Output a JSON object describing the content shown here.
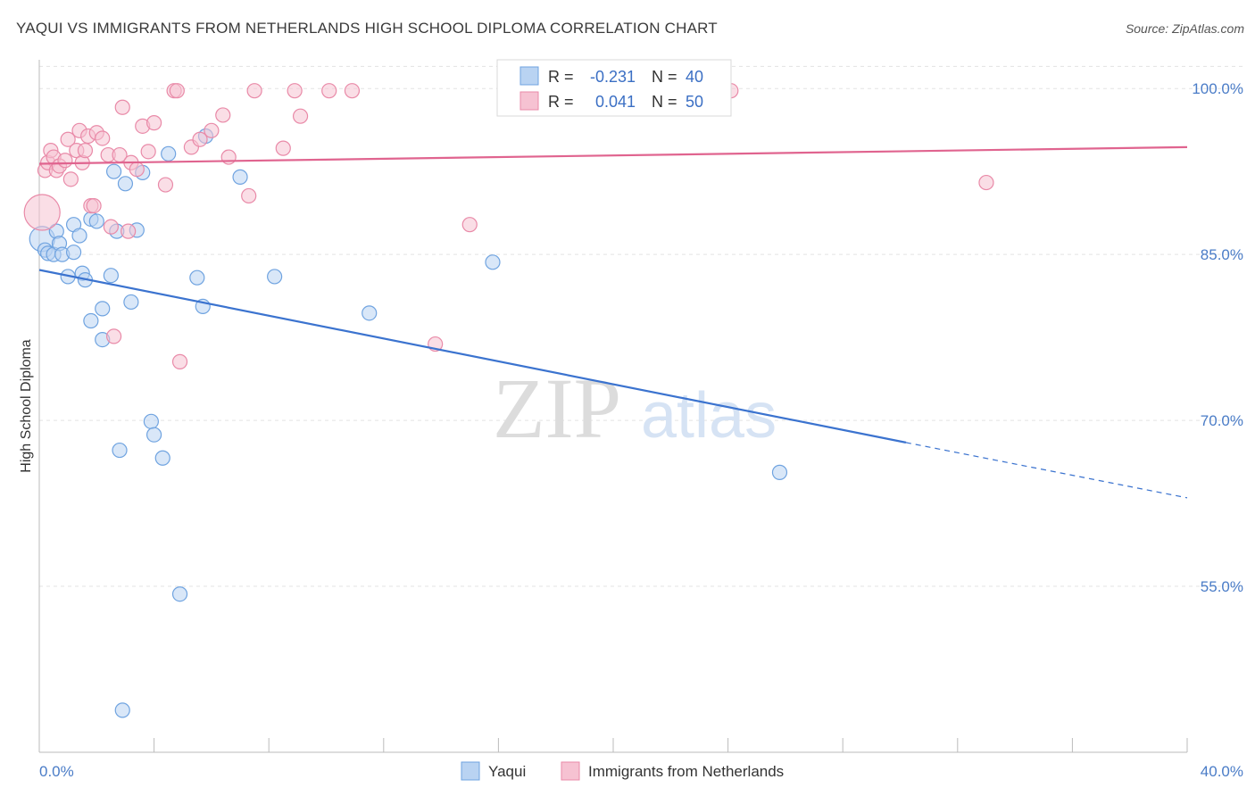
{
  "header": {
    "title": "YAQUI VS IMMIGRANTS FROM NETHERLANDS HIGH SCHOOL DIPLOMA CORRELATION CHART",
    "source": "Source: ZipAtlas.com"
  },
  "watermark": {
    "zip": "ZIP",
    "atlas": "atlas"
  },
  "chart_data": {
    "type": "scatter",
    "title": "YAQUI VS IMMIGRANTS FROM NETHERLANDS HIGH SCHOOL DIPLOMA CORRELATION CHART",
    "xlabel": "",
    "ylabel": "High School Diploma",
    "xlim": [
      0,
      40
    ],
    "ylim": [
      40,
      103
    ],
    "x_tick_labels": [
      "0.0%",
      "40.0%"
    ],
    "y_ticks": [
      55,
      70,
      85,
      100
    ],
    "y_tick_labels": [
      "55.0%",
      "70.0%",
      "85.0%",
      "100.0%"
    ],
    "grid": true,
    "legend_position": "top-center",
    "series": [
      {
        "name": "Yaqui",
        "color": "#6fa3e0",
        "fill": "#b9d3f2",
        "r": "-0.231",
        "n": "40",
        "trend": {
          "x0": 0,
          "y0": 83.6,
          "x1": 30.2,
          "y1": 68.0,
          "dash_x1": 40,
          "dash_y1": 63.0
        },
        "points": [
          [
            0.1,
            86.4
          ],
          [
            0.2,
            85.4
          ],
          [
            0.3,
            85.1
          ],
          [
            0.5,
            85.0
          ],
          [
            0.6,
            87.1
          ],
          [
            0.7,
            86.0
          ],
          [
            0.8,
            85.0
          ],
          [
            1.0,
            83.0
          ],
          [
            1.2,
            85.2
          ],
          [
            1.2,
            87.7
          ],
          [
            1.4,
            86.7
          ],
          [
            1.5,
            83.3
          ],
          [
            1.6,
            82.7
          ],
          [
            1.8,
            88.2
          ],
          [
            1.8,
            79.0
          ],
          [
            2.0,
            88.0
          ],
          [
            2.2,
            77.3
          ],
          [
            2.2,
            80.1
          ],
          [
            2.5,
            83.1
          ],
          [
            2.6,
            92.5
          ],
          [
            2.7,
            87.1
          ],
          [
            2.8,
            67.3
          ],
          [
            3.0,
            91.4
          ],
          [
            3.2,
            80.7
          ],
          [
            3.4,
            87.2
          ],
          [
            3.6,
            92.4
          ],
          [
            3.9,
            69.9
          ],
          [
            4.0,
            68.7
          ],
          [
            4.3,
            66.6
          ],
          [
            4.5,
            94.1
          ],
          [
            4.9,
            54.3
          ],
          [
            5.5,
            82.9
          ],
          [
            5.7,
            80.3
          ],
          [
            5.8,
            95.7
          ],
          [
            7.0,
            92.0
          ],
          [
            8.2,
            83.0
          ],
          [
            2.9,
            43.8
          ],
          [
            11.5,
            79.7
          ],
          [
            15.8,
            84.3
          ],
          [
            25.8,
            65.3
          ]
        ]
      },
      {
        "name": "Immigrants from Netherlands",
        "color": "#e98aa8",
        "fill": "#f6c2d2",
        "r": "0.041",
        "n": "50",
        "trend": {
          "x0": 0,
          "y0": 93.2,
          "x1": 40,
          "y1": 94.7
        },
        "points": [
          [
            0.1,
            88.8
          ],
          [
            0.2,
            92.6
          ],
          [
            0.3,
            93.3
          ],
          [
            0.4,
            94.4
          ],
          [
            0.5,
            93.8
          ],
          [
            0.6,
            92.6
          ],
          [
            0.7,
            93.0
          ],
          [
            0.9,
            93.5
          ],
          [
            1.0,
            95.4
          ],
          [
            1.1,
            91.8
          ],
          [
            1.3,
            94.4
          ],
          [
            1.4,
            96.2
          ],
          [
            1.5,
            93.3
          ],
          [
            1.6,
            94.4
          ],
          [
            1.7,
            95.7
          ],
          [
            1.8,
            89.4
          ],
          [
            1.9,
            89.4
          ],
          [
            2.0,
            96.0
          ],
          [
            2.2,
            95.5
          ],
          [
            2.4,
            94.0
          ],
          [
            2.5,
            87.5
          ],
          [
            2.6,
            77.6
          ],
          [
            2.8,
            94.0
          ],
          [
            2.9,
            98.3
          ],
          [
            3.1,
            87.1
          ],
          [
            3.2,
            93.3
          ],
          [
            3.4,
            92.7
          ],
          [
            3.6,
            96.6
          ],
          [
            3.8,
            94.3
          ],
          [
            4.0,
            96.9
          ],
          [
            4.4,
            91.3
          ],
          [
            4.7,
            99.8
          ],
          [
            4.8,
            99.8
          ],
          [
            4.9,
            75.3
          ],
          [
            5.3,
            94.7
          ],
          [
            5.6,
            95.4
          ],
          [
            6.0,
            96.2
          ],
          [
            6.4,
            97.6
          ],
          [
            6.6,
            93.8
          ],
          [
            7.3,
            90.3
          ],
          [
            7.5,
            99.8
          ],
          [
            8.5,
            94.6
          ],
          [
            8.9,
            99.8
          ],
          [
            9.1,
            97.5
          ],
          [
            10.1,
            99.8
          ],
          [
            10.9,
            99.8
          ],
          [
            13.8,
            76.9
          ],
          [
            15.0,
            87.7
          ],
          [
            24.1,
            99.8
          ],
          [
            33.0,
            91.5
          ]
        ]
      }
    ]
  }
}
